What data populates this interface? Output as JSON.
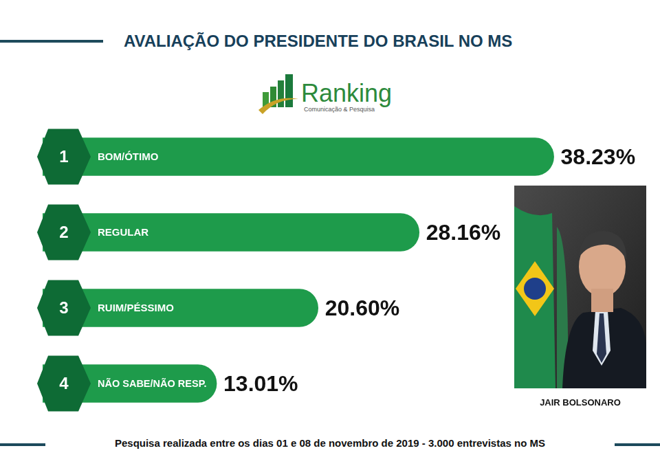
{
  "chart_data": {
    "type": "bar",
    "title": "AVALIAÇÃO DO PRESIDENTE DO BRASIL NO MS",
    "orientation": "horizontal",
    "ranks": [
      1,
      2,
      3,
      4
    ],
    "categories": [
      "BOM/ÓTIMO",
      "REGULAR",
      "RUIM/PÉSSIMO",
      "NÃO SABE/NÃO RESP."
    ],
    "values": [
      38.23,
      28.16,
      20.6,
      13.01
    ],
    "value_labels": [
      "38.23%",
      "28.16%",
      "20.60%",
      "13.01%"
    ],
    "color": "#1e9b4b",
    "xlim": [
      0,
      40
    ],
    "xticks": [
      0,
      10,
      20,
      30,
      40
    ],
    "grid": false,
    "tick_labels": false,
    "data_labels": true
  },
  "logo": {
    "name": "Ranking",
    "tagline": "Comunicação & Pesquisa"
  },
  "photo": {
    "caption": "JAIR BOLSONARO"
  },
  "footer": "Pesquisa realizada entre os dias 01 e 08 de novembro de 2019 - 3.000 entrevistas no MS"
}
